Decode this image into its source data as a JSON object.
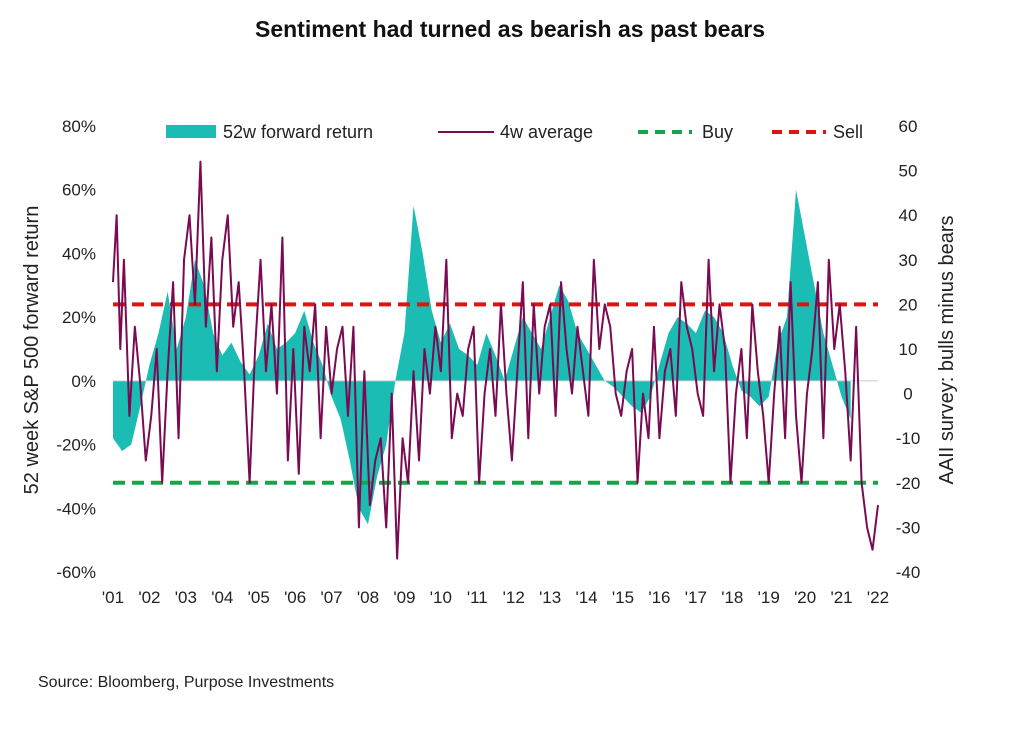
{
  "title": "Sentiment had turned as bearish as past bears",
  "source": "Source: Bloomberg, Purpose Investments",
  "colors": {
    "area": "#1bbcb3",
    "line": "#7a0a52",
    "buy": "#12a84a",
    "sell": "#e01212"
  },
  "chart_data": {
    "type": "area",
    "left_axis": {
      "label": "52 week S&P 500 forward return",
      "range": [
        -60,
        80
      ],
      "ticks": [
        "80%",
        "60%",
        "40%",
        "20%",
        "0%",
        "-20%",
        "-40%",
        "-60%"
      ]
    },
    "right_axis": {
      "label": "AAII survey: bulls minus bears",
      "range": [
        -40,
        60
      ],
      "ticks": [
        "60",
        "50",
        "40",
        "30",
        "20",
        "10",
        "0",
        "-10",
        "-20",
        "-30",
        "-40"
      ]
    },
    "x_ticks": [
      "'01",
      "'02",
      "'03",
      "'04",
      "'05",
      "'06",
      "'07",
      "'08",
      "'09",
      "'10",
      "'11",
      "'12",
      "'13",
      "'14",
      "'15",
      "'16",
      "'17",
      "'18",
      "'19",
      "'20",
      "'21",
      "'22"
    ],
    "x_range": [
      2001,
      2022
    ],
    "legend": [
      "52w forward return",
      "4w average",
      "Buy",
      "Sell"
    ],
    "buy_level": -20,
    "sell_level": 20,
    "series": [
      {
        "name": "52w forward return",
        "axis": "left",
        "x": [
          2001.0,
          2001.25,
          2001.5,
          2001.75,
          2002.0,
          2002.25,
          2002.5,
          2002.75,
          2003.0,
          2003.25,
          2003.5,
          2003.75,
          2004.0,
          2004.25,
          2004.5,
          2004.75,
          2005.0,
          2005.25,
          2005.5,
          2005.75,
          2006.0,
          2006.25,
          2006.5,
          2006.75,
          2007.0,
          2007.25,
          2007.5,
          2007.75,
          2008.0,
          2008.25,
          2008.5,
          2008.75,
          2009.0,
          2009.25,
          2009.5,
          2009.75,
          2010.0,
          2010.25,
          2010.5,
          2010.75,
          2011.0,
          2011.25,
          2011.5,
          2011.75,
          2012.0,
          2012.25,
          2012.5,
          2012.75,
          2013.0,
          2013.25,
          2013.5,
          2013.75,
          2014.0,
          2014.25,
          2014.5,
          2014.75,
          2015.0,
          2015.25,
          2015.5,
          2015.75,
          2016.0,
          2016.25,
          2016.5,
          2016.75,
          2017.0,
          2017.25,
          2017.5,
          2017.75,
          2018.0,
          2018.25,
          2018.5,
          2018.75,
          2019.0,
          2019.25,
          2019.5,
          2019.75,
          2020.0,
          2020.25,
          2020.5,
          2020.75,
          2021.0,
          2021.25
        ],
        "values": [
          -18,
          -22,
          -20,
          -8,
          5,
          15,
          28,
          10,
          20,
          38,
          30,
          15,
          8,
          12,
          6,
          2,
          8,
          18,
          10,
          12,
          15,
          22,
          12,
          5,
          -5,
          -12,
          -25,
          -40,
          -45,
          -30,
          -20,
          0,
          15,
          55,
          40,
          22,
          12,
          18,
          10,
          8,
          5,
          15,
          8,
          0,
          10,
          20,
          15,
          10,
          20,
          30,
          25,
          15,
          10,
          5,
          0,
          -2,
          -5,
          -8,
          -10,
          -5,
          5,
          15,
          20,
          18,
          15,
          22,
          20,
          15,
          5,
          -3,
          -5,
          -8,
          -5,
          12,
          20,
          60,
          45,
          30,
          15,
          5,
          -5,
          -12
        ]
      },
      {
        "name": "4w average",
        "axis": "right",
        "x": [
          2001.0,
          2001.1,
          2001.2,
          2001.3,
          2001.45,
          2001.6,
          2001.75,
          2001.9,
          2002.05,
          2002.2,
          2002.35,
          2002.5,
          2002.65,
          2002.8,
          2002.95,
          2003.1,
          2003.25,
          2003.4,
          2003.55,
          2003.7,
          2003.85,
          2004.0,
          2004.15,
          2004.3,
          2004.45,
          2004.6,
          2004.75,
          2004.9,
          2005.05,
          2005.2,
          2005.35,
          2005.5,
          2005.65,
          2005.8,
          2005.95,
          2006.1,
          2006.25,
          2006.4,
          2006.55,
          2006.7,
          2006.85,
          2007.0,
          2007.15,
          2007.3,
          2007.45,
          2007.6,
          2007.75,
          2007.9,
          2008.05,
          2008.2,
          2008.35,
          2008.5,
          2008.65,
          2008.8,
          2008.95,
          2009.1,
          2009.25,
          2009.4,
          2009.55,
          2009.7,
          2009.85,
          2010.0,
          2010.15,
          2010.3,
          2010.45,
          2010.6,
          2010.75,
          2010.9,
          2011.05,
          2011.2,
          2011.35,
          2011.5,
          2011.65,
          2011.8,
          2011.95,
          2012.1,
          2012.25,
          2012.4,
          2012.55,
          2012.7,
          2012.85,
          2013.0,
          2013.15,
          2013.3,
          2013.45,
          2013.6,
          2013.75,
          2013.9,
          2014.05,
          2014.2,
          2014.35,
          2014.5,
          2014.65,
          2014.8,
          2014.95,
          2015.1,
          2015.25,
          2015.4,
          2015.55,
          2015.7,
          2015.85,
          2016.0,
          2016.15,
          2016.3,
          2016.45,
          2016.6,
          2016.75,
          2016.9,
          2017.05,
          2017.2,
          2017.35,
          2017.5,
          2017.65,
          2017.8,
          2017.95,
          2018.1,
          2018.25,
          2018.4,
          2018.55,
          2018.7,
          2018.85,
          2019.0,
          2019.15,
          2019.3,
          2019.45,
          2019.6,
          2019.75,
          2019.9,
          2020.05,
          2020.2,
          2020.35,
          2020.5,
          2020.65,
          2020.8,
          2020.95,
          2021.1,
          2021.25,
          2021.4,
          2021.55,
          2021.7,
          2021.85,
          2022.0
        ],
        "values": [
          25,
          40,
          10,
          30,
          -5,
          15,
          2,
          -15,
          -5,
          10,
          -20,
          5,
          25,
          -10,
          30,
          40,
          20,
          52,
          15,
          35,
          5,
          30,
          40,
          15,
          25,
          5,
          -20,
          10,
          30,
          5,
          20,
          0,
          35,
          -15,
          10,
          -18,
          15,
          5,
          20,
          -10,
          15,
          0,
          10,
          15,
          -5,
          15,
          -30,
          5,
          -25,
          -15,
          -10,
          -30,
          0,
          -37,
          -10,
          -20,
          5,
          -15,
          10,
          0,
          15,
          5,
          30,
          -10,
          0,
          -5,
          10,
          15,
          -20,
          0,
          10,
          -5,
          20,
          0,
          -15,
          5,
          25,
          -10,
          20,
          0,
          15,
          20,
          -5,
          25,
          10,
          0,
          15,
          5,
          -5,
          30,
          10,
          20,
          15,
          0,
          -5,
          5,
          10,
          -20,
          0,
          -10,
          15,
          -10,
          5,
          10,
          -5,
          25,
          15,
          10,
          0,
          -5,
          30,
          5,
          20,
          10,
          -20,
          0,
          10,
          -10,
          20,
          5,
          -5,
          -20,
          0,
          15,
          -10,
          25,
          -5,
          -20,
          0,
          10,
          25,
          -10,
          30,
          10,
          20,
          5,
          -15,
          15,
          -20,
          -30,
          -35,
          -25
        ]
      }
    ]
  }
}
